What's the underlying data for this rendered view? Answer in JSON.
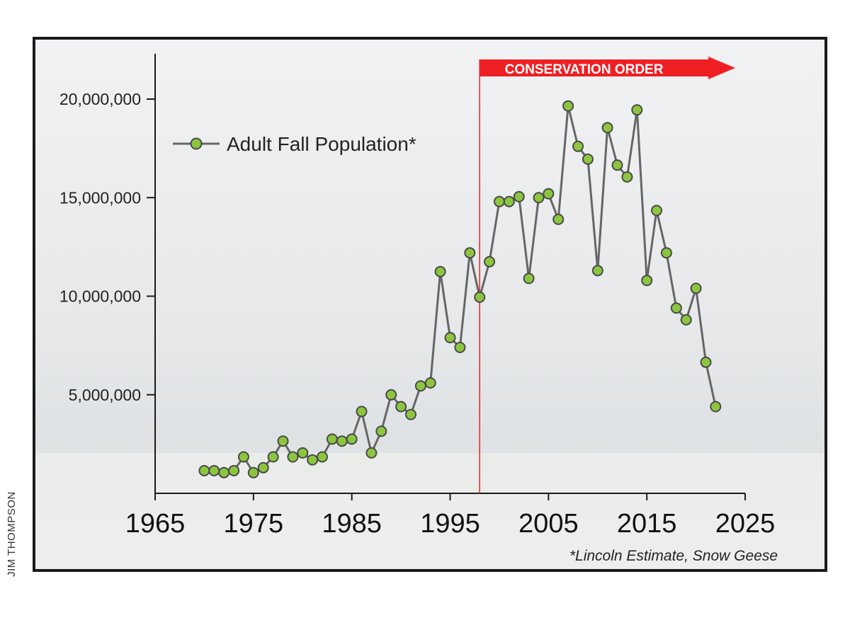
{
  "credit": "JIM THOMPSON",
  "colors": {
    "line": "#666666",
    "marker_fill": "#8cc63f",
    "marker_stroke": "#4a4a4a",
    "banner": "#ee2024",
    "frame": "#1a1a1a",
    "background": "#e9ecee"
  },
  "chart_data": {
    "type": "line",
    "title": "",
    "xlabel": "",
    "ylabel": "",
    "xlim": [
      1965,
      2025
    ],
    "ylim": [
      0,
      20000000
    ],
    "grid": false,
    "legend_position": "top-left",
    "x_ticks": [
      "1965",
      "1975",
      "1985",
      "1995",
      "2005",
      "2015",
      "2025"
    ],
    "y_ticks": [
      "5,000,000",
      "10,000,000",
      "15,000,000",
      "20,000,000"
    ],
    "annotations": {
      "conservation_order": {
        "label": "CONSERVATION ORDER",
        "start_year": 1998
      },
      "footnote": "*Lincoln Estimate, Snow Geese"
    },
    "series": [
      {
        "name": "Adult Fall Population*",
        "x": [
          1970,
          1971,
          1972,
          1973,
          1974,
          1975,
          1976,
          1977,
          1978,
          1979,
          1980,
          1981,
          1982,
          1983,
          1984,
          1985,
          1986,
          1987,
          1988,
          1989,
          1990,
          1991,
          1992,
          1993,
          1994,
          1995,
          1996,
          1997,
          1998,
          1999,
          2000,
          2001,
          2002,
          2003,
          2004,
          2005,
          2006,
          2007,
          2008,
          2009,
          2010,
          2011,
          2012,
          2013,
          2014,
          2015,
          2016,
          2017,
          2018,
          2019,
          2020,
          2021,
          2022
        ],
        "y": [
          1150000,
          1150000,
          1050000,
          1150000,
          1850000,
          1050000,
          1300000,
          1850000,
          2650000,
          1850000,
          2050000,
          1700000,
          1850000,
          2750000,
          2650000,
          2750000,
          4150000,
          2050000,
          3150000,
          5000000,
          4400000,
          4000000,
          5450000,
          5600000,
          11250000,
          7900000,
          7400000,
          12200000,
          9950000,
          11750000,
          14800000,
          14800000,
          15050000,
          10900000,
          15000000,
          15200000,
          13900000,
          19650000,
          17600000,
          16950000,
          11300000,
          18550000,
          16650000,
          16050000,
          19450000,
          10800000,
          14350000,
          12200000,
          9400000,
          8800000,
          10400000,
          6650000,
          4400000
        ]
      }
    ]
  }
}
